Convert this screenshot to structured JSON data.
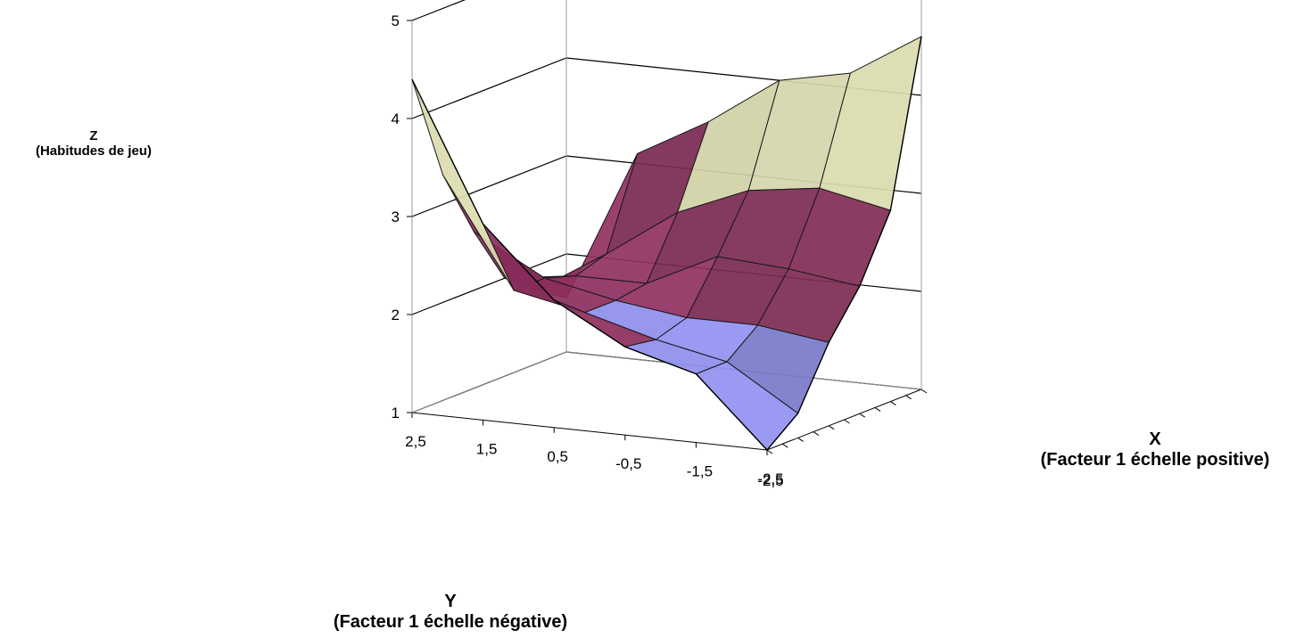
{
  "chart_data": {
    "type": "surface",
    "zlabel": {
      "line1": "Z",
      "line2": "(Habitudes de jeu)"
    },
    "xlabel": {
      "line1": "X",
      "line2": "(Facteur 1 échelle positive)"
    },
    "ylabel": {
      "line1": "Y",
      "line2": "(Facteur 1 échelle négative)"
    },
    "z_ticks": [
      "1",
      "2",
      "3",
      "4",
      "5"
    ],
    "zlim": [
      1,
      5
    ],
    "y_tick_labels": [
      "2,5",
      "1,5",
      "0,5",
      "-0,5",
      "-1,5",
      "-2,5"
    ],
    "x_tick_labels": [
      "-2,5"
    ],
    "grid": true,
    "z_bands": [
      {
        "range": [
          1,
          2
        ],
        "color": "#9999ff"
      },
      {
        "range": [
          2,
          3
        ],
        "color": "#993366"
      },
      {
        "range": [
          3,
          4
        ],
        "color": "#ffffcc"
      },
      {
        "range": [
          4,
          5
        ],
        "color": "#333399"
      }
    ],
    "surface": [
      [
        1.0,
        1.25,
        1.85,
        2.3,
        2.95,
        4.6
      ],
      [
        1.7,
        1.7,
        1.95,
        2.4,
        3.1,
        4.15
      ],
      [
        1.9,
        1.85,
        1.95,
        2.45,
        3.0,
        4.0
      ],
      [
        2.3,
        2.05,
        2.05,
        2.1,
        2.7,
        3.5
      ],
      [
        3.0,
        2.2,
        2.2,
        2.1,
        2.2,
        3.1
      ],
      [
        4.4,
        3.3,
        2.6,
        2.0,
        1.75,
        1.55
      ]
    ]
  }
}
